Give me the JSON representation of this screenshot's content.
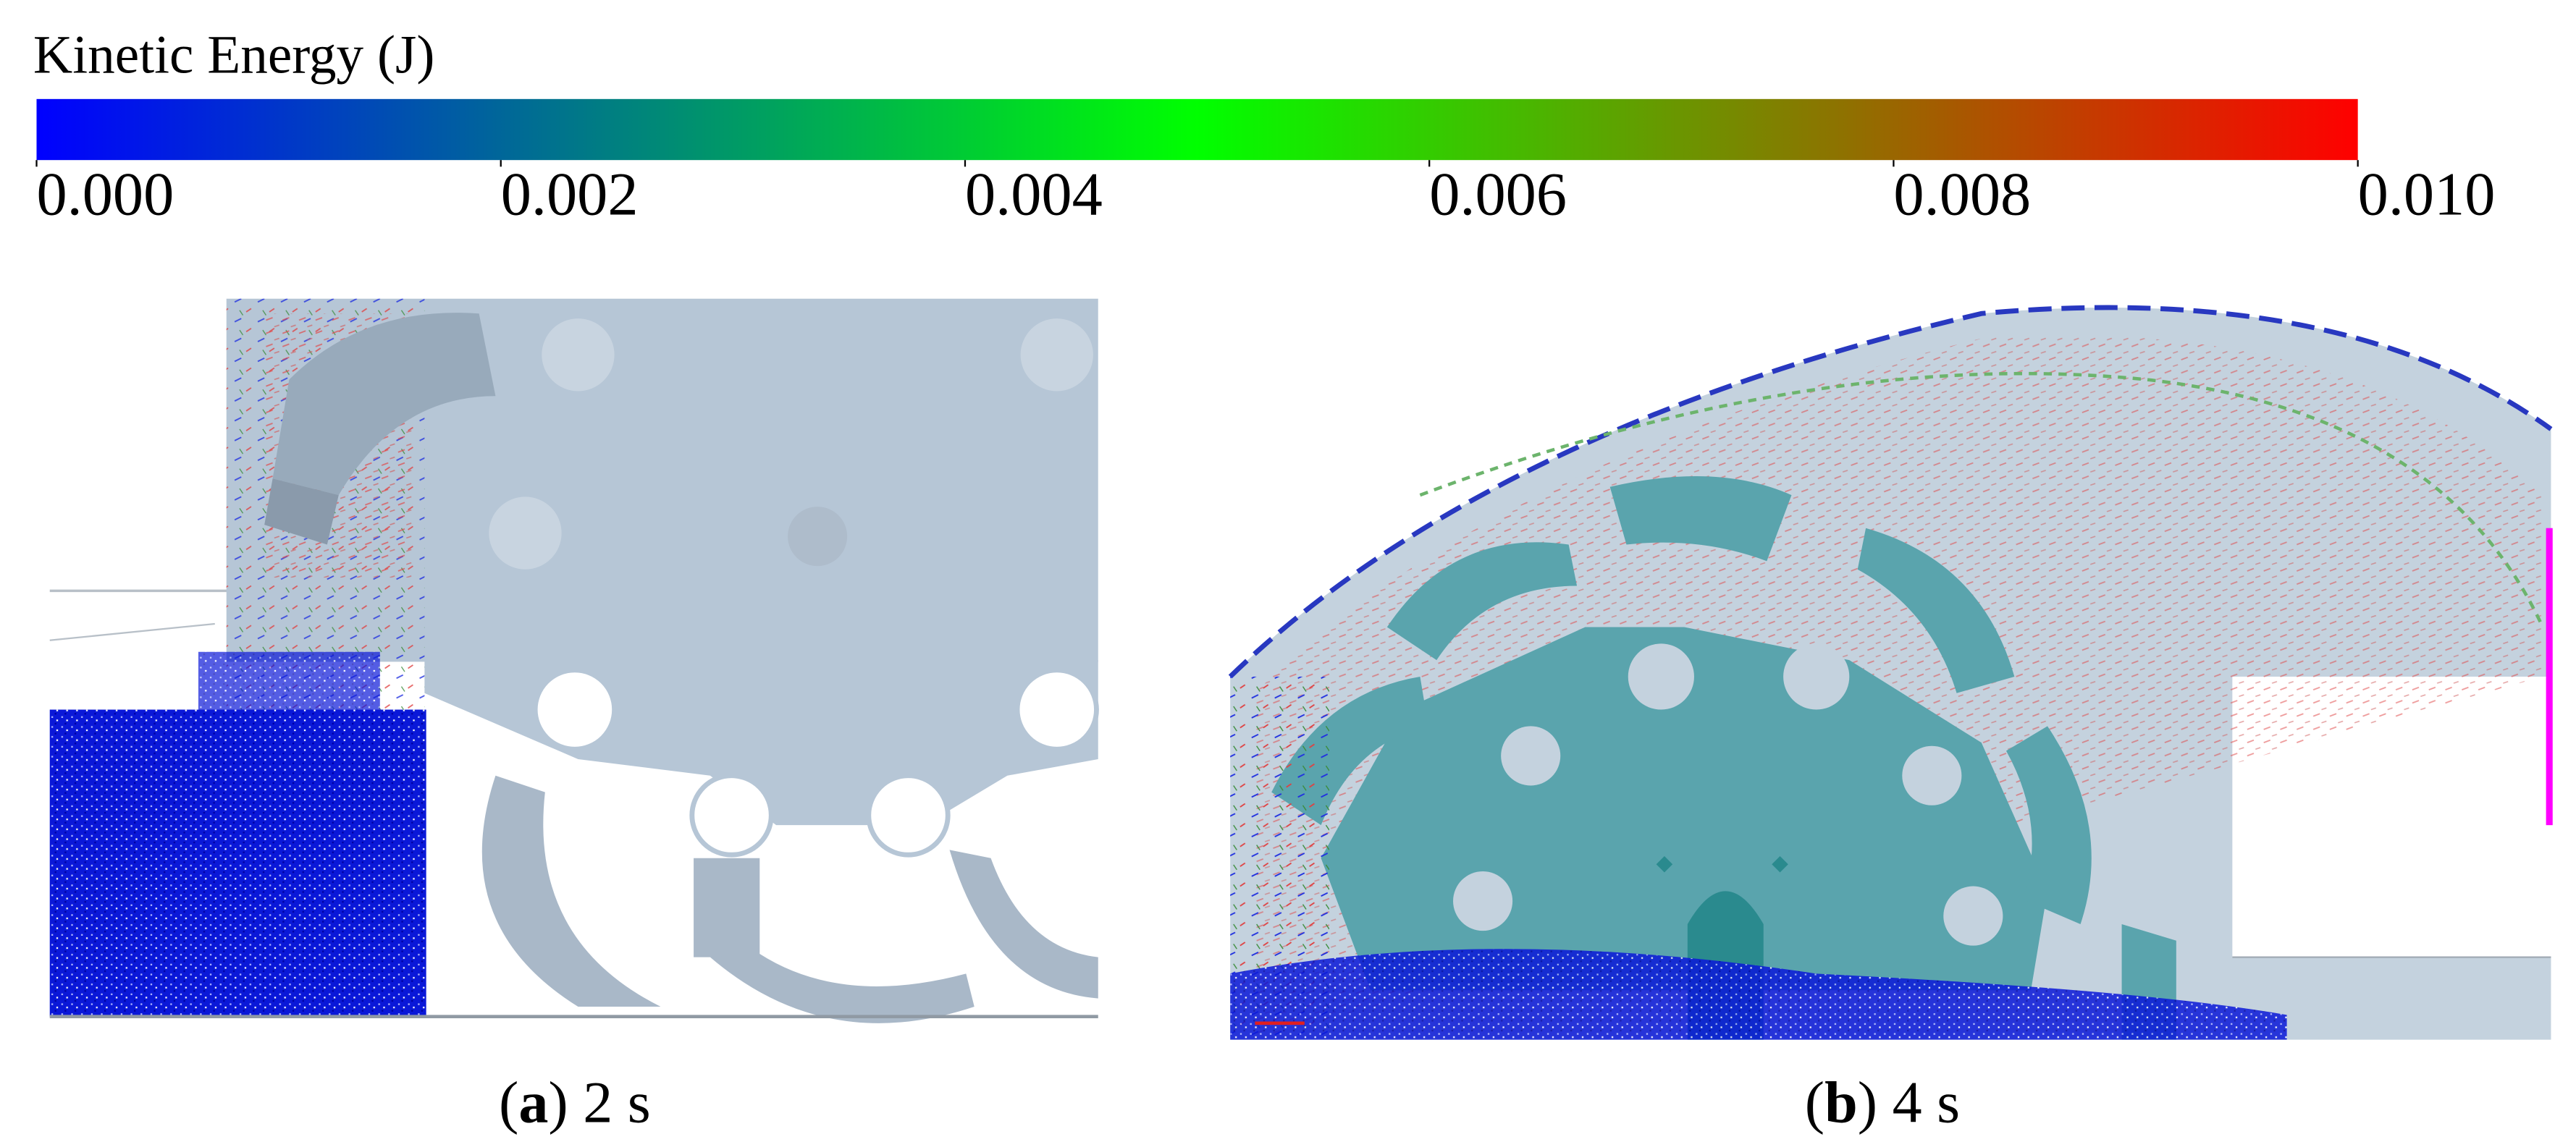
{
  "colorbar": {
    "label": "Kinetic Energy (J)",
    "range": [
      0,
      0.01
    ],
    "colors": [
      "#0000ff",
      "#008080",
      "#00ff00",
      "#808000",
      "#ff0000"
    ],
    "ticks": [
      {
        "value": 0,
        "label": "0.000"
      },
      {
        "value": 0.002,
        "label": "0.002"
      },
      {
        "value": 0.004,
        "label": "0.004"
      },
      {
        "value": 0.006,
        "label": "0.006"
      },
      {
        "value": 0.008,
        "label": "0.008"
      },
      {
        "value": 0.01,
        "label": "0.010"
      }
    ]
  },
  "panels": [
    {
      "caption": [
        "(",
        "a",
        ") 2 s"
      ]
    },
    {
      "caption": [
        "(",
        "b",
        ") 4 s"
      ]
    }
  ]
}
